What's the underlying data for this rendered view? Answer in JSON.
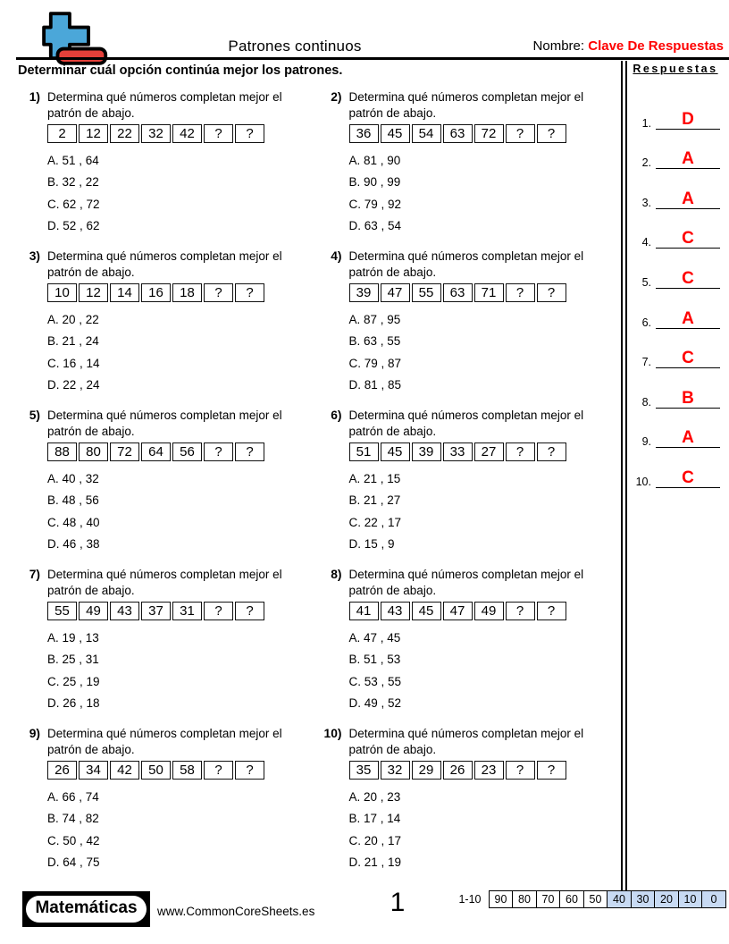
{
  "header": {
    "title": "Patrones continuos",
    "name_label": "Nombre:",
    "name_value": "Clave De Respuestas",
    "instruction": "Determinar cuál opción continúa mejor los patrones."
  },
  "answers_panel": {
    "title": "Respuestas",
    "items": [
      {
        "num": "1.",
        "letter": "D"
      },
      {
        "num": "2.",
        "letter": "A"
      },
      {
        "num": "3.",
        "letter": "A"
      },
      {
        "num": "4.",
        "letter": "C"
      },
      {
        "num": "5.",
        "letter": "C"
      },
      {
        "num": "6.",
        "letter": "A"
      },
      {
        "num": "7.",
        "letter": "C"
      },
      {
        "num": "8.",
        "letter": "B"
      },
      {
        "num": "9.",
        "letter": "A"
      },
      {
        "num": "10.",
        "letter": "C"
      }
    ]
  },
  "problem_prompt": "Determina qué números completan mejor el patrón de abajo.",
  "problems": [
    {
      "num": "1)",
      "cells": [
        "2",
        "12",
        "22",
        "32",
        "42",
        "?",
        "?"
      ],
      "choices": [
        "A. 51 , 64",
        "B. 32 , 22",
        "C. 62 , 72",
        "D. 52 , 62"
      ]
    },
    {
      "num": "2)",
      "cells": [
        "36",
        "45",
        "54",
        "63",
        "72",
        "?",
        "?"
      ],
      "choices": [
        "A. 81 , 90",
        "B. 90 , 99",
        "C. 79 , 92",
        "D. 63 , 54"
      ]
    },
    {
      "num": "3)",
      "cells": [
        "10",
        "12",
        "14",
        "16",
        "18",
        "?",
        "?"
      ],
      "choices": [
        "A. 20 , 22",
        "B. 21 , 24",
        "C. 16 , 14",
        "D. 22 , 24"
      ]
    },
    {
      "num": "4)",
      "cells": [
        "39",
        "47",
        "55",
        "63",
        "71",
        "?",
        "?"
      ],
      "choices": [
        "A. 87 , 95",
        "B. 63 , 55",
        "C. 79 , 87",
        "D. 81 , 85"
      ]
    },
    {
      "num": "5)",
      "cells": [
        "88",
        "80",
        "72",
        "64",
        "56",
        "?",
        "?"
      ],
      "choices": [
        "A. 40 , 32",
        "B. 48 , 56",
        "C. 48 , 40",
        "D. 46 , 38"
      ]
    },
    {
      "num": "6)",
      "cells": [
        "51",
        "45",
        "39",
        "33",
        "27",
        "?",
        "?"
      ],
      "choices": [
        "A. 21 , 15",
        "B. 21 , 27",
        "C. 22 , 17",
        "D. 15 , 9"
      ]
    },
    {
      "num": "7)",
      "cells": [
        "55",
        "49",
        "43",
        "37",
        "31",
        "?",
        "?"
      ],
      "choices": [
        "A. 19 , 13",
        "B. 25 , 31",
        "C. 25 , 19",
        "D. 26 , 18"
      ]
    },
    {
      "num": "8)",
      "cells": [
        "41",
        "43",
        "45",
        "47",
        "49",
        "?",
        "?"
      ],
      "choices": [
        "A. 47 , 45",
        "B. 51 , 53",
        "C. 53 , 55",
        "D. 49 , 52"
      ]
    },
    {
      "num": "9)",
      "cells": [
        "26",
        "34",
        "42",
        "50",
        "58",
        "?",
        "?"
      ],
      "choices": [
        "A. 66 , 74",
        "B. 74 , 82",
        "C. 50 , 42",
        "D. 64 , 75"
      ]
    },
    {
      "num": "10)",
      "cells": [
        "35",
        "32",
        "29",
        "26",
        "23",
        "?",
        "?"
      ],
      "choices": [
        "A. 20 , 23",
        "B. 17 , 14",
        "C. 20 , 17",
        "D. 21 , 19"
      ]
    }
  ],
  "footer": {
    "brand": "Matemáticas",
    "site": "www.CommonCoreSheets.es",
    "page": "1",
    "score_label": "1-10",
    "score_cells": [
      "90",
      "80",
      "70",
      "60",
      "50",
      "40",
      "30",
      "20",
      "10",
      "0"
    ],
    "score_highlight_start": 5
  },
  "colors": {
    "accent_red": "#fe0000",
    "logo_blue": "#4ba7d9",
    "logo_red": "#e4403a",
    "score_blue": "#c8daf3"
  }
}
